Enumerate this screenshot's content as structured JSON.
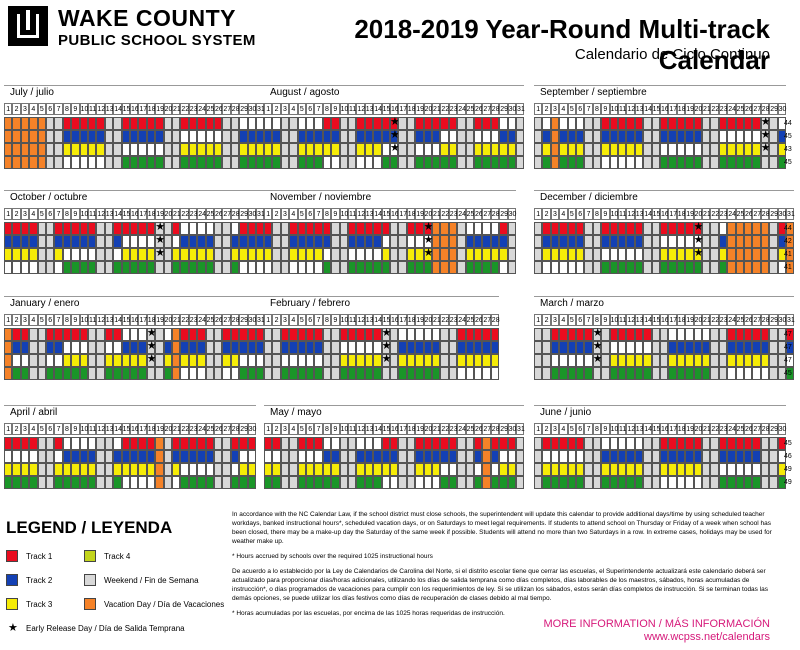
{
  "header": {
    "logo_line1": "WAKE COUNTY",
    "logo_line2": "PUBLIC SCHOOL SYSTEM",
    "title": "2018-2019 Year-Round Multi-track Calendar",
    "subtitle": "Calendario de Ciclo Continuo"
  },
  "colors": {
    "track1": "#ea0c1f",
    "track2": "#1340b4",
    "track3": "#f6ec07",
    "track4": "#1a9528",
    "weekend": "#d8d8d8",
    "vacation": "#f58228",
    "school": "#ffffff"
  },
  "calendar": {
    "rows": [
      {
        "months": [
          {
            "label": "July / julio",
            "days": 31,
            "first": 0,
            "tracks": [
              44,
              45,
              43,
              45
            ],
            "vac": [
              1,
              2,
              3,
              4,
              5
            ],
            "early": []
          },
          {
            "label": "August / agosto",
            "days": 31,
            "first": 3,
            "tracks": [
              44,
              45,
              43,
              45
            ],
            "vac": [],
            "early": [
              16
            ]
          },
          {
            "label": "September / septiembre",
            "days": 30,
            "first": 6,
            "tracks": [
              44,
              45,
              43,
              45
            ],
            "vac": [
              3
            ],
            "early": [
              28
            ]
          }
        ]
      },
      {
        "months": [
          {
            "label": "October / octubre",
            "days": 31,
            "first": 1,
            "tracks": [
              44,
              42,
              41,
              41
            ],
            "vac": [],
            "early": [
              19
            ]
          },
          {
            "label": "November / noviembre",
            "days": 30,
            "first": 4,
            "tracks": [
              44,
              42,
              41,
              41
            ],
            "vac": [
              21,
              22,
              23
            ],
            "early": [
              20
            ]
          },
          {
            "label": "December / diciembre",
            "days": 31,
            "first": 6,
            "tracks": [
              44,
              42,
              41,
              41
            ],
            "vac": [
              24,
              25,
              26,
              27,
              28,
              31
            ],
            "early": [
              20
            ]
          }
        ]
      },
      {
        "months": [
          {
            "label": "January / enero",
            "days": 31,
            "first": 2,
            "tracks": [
              47,
              47,
              47,
              45
            ],
            "vac": [
              1,
              21
            ],
            "early": [
              18
            ]
          },
          {
            "label": "February / febrero",
            "days": 28,
            "first": 5,
            "tracks": [
              47,
              47,
              47,
              45
            ],
            "vac": [],
            "early": [
              15
            ]
          },
          {
            "label": "March / marzo",
            "days": 31,
            "first": 5,
            "tracks": [
              47,
              47,
              47,
              45
            ],
            "vac": [],
            "early": [
              8
            ]
          }
        ]
      },
      {
        "months": [
          {
            "label": "April / abril",
            "days": 30,
            "first": 1,
            "tracks": [
              45,
              46,
              49,
              49
            ],
            "vac": [
              19
            ],
            "early": []
          },
          {
            "label": "May / mayo",
            "days": 31,
            "first": 3,
            "tracks": [
              45,
              46,
              49,
              49
            ],
            "vac": [
              27
            ],
            "early": []
          },
          {
            "label": "June / junio",
            "days": 30,
            "first": 6,
            "tracks": [
              45,
              46,
              49,
              49
            ],
            "vac": [],
            "early": []
          }
        ]
      }
    ],
    "track_counts": [
      [
        "44",
        "45",
        "43",
        "45"
      ],
      [
        "44",
        "42",
        "41",
        "41"
      ],
      [
        "47",
        "47",
        "47",
        "45"
      ],
      [
        "45",
        "46",
        "49",
        "49"
      ]
    ]
  },
  "legend": {
    "title": "LEGEND / LEYENDA",
    "track1": "Track 1",
    "track2": "Track 2",
    "track3": "Track 3",
    "track4": "Track 4",
    "weekend": "Weekend / Fin de Semana",
    "vacation": "Vacation Day / Día de Vacaciones",
    "early": "Early Release Day /  Día de Salida Temprana"
  },
  "notes": {
    "p1": "In accordance with the NC Calendar Law, if the school district must close schools, the superintendent will update this calendar to provide additional days/time by using scheduled teacher workdays, banked instructional hours*, scheduled vacation days, or on Saturdays to meet legal requirements. If students to attend school on Thursday or Friday of a week when school has been closed, there may be a make-up day the Saturday of the same week if possible. Students will attend no more than two Saturdays in a row. In extreme cases, holidays may be used for weather make up.",
    "p2": "* Hours accrued by schools over the required 1025 instructional hours",
    "p3": "De acuerdo a lo establecido por la Ley de Calendarios de Carolina del Norte, si el distrito escolar tiene que cerrar las escuelas, el Superintendente actualizará este calendario deberá ser actualizado para proporcionar días/horas adicionales, utilizando los días de salida temprana como días completos, días laborables de los maestros, sábados, horas acumuladas de instrucción*, o días programados de vacaciones para cumplir con los requerimientos de ley.  Si se utilizan los sábados, estos  serán días completos de instrucción. Si se terminan todas las demás opciones, se puede utilizar los días festivos como días de recuperación de clases debido al mal tiempo.",
    "p4": "* Horas acumuladas por las escuelas, por encima de las 1025 horas requeridas de instrucción."
  },
  "more_info": {
    "line1": "MORE INFORMATION / MÁS INFORMACIÓN",
    "line2": "www.wcpss.net/calendars"
  }
}
